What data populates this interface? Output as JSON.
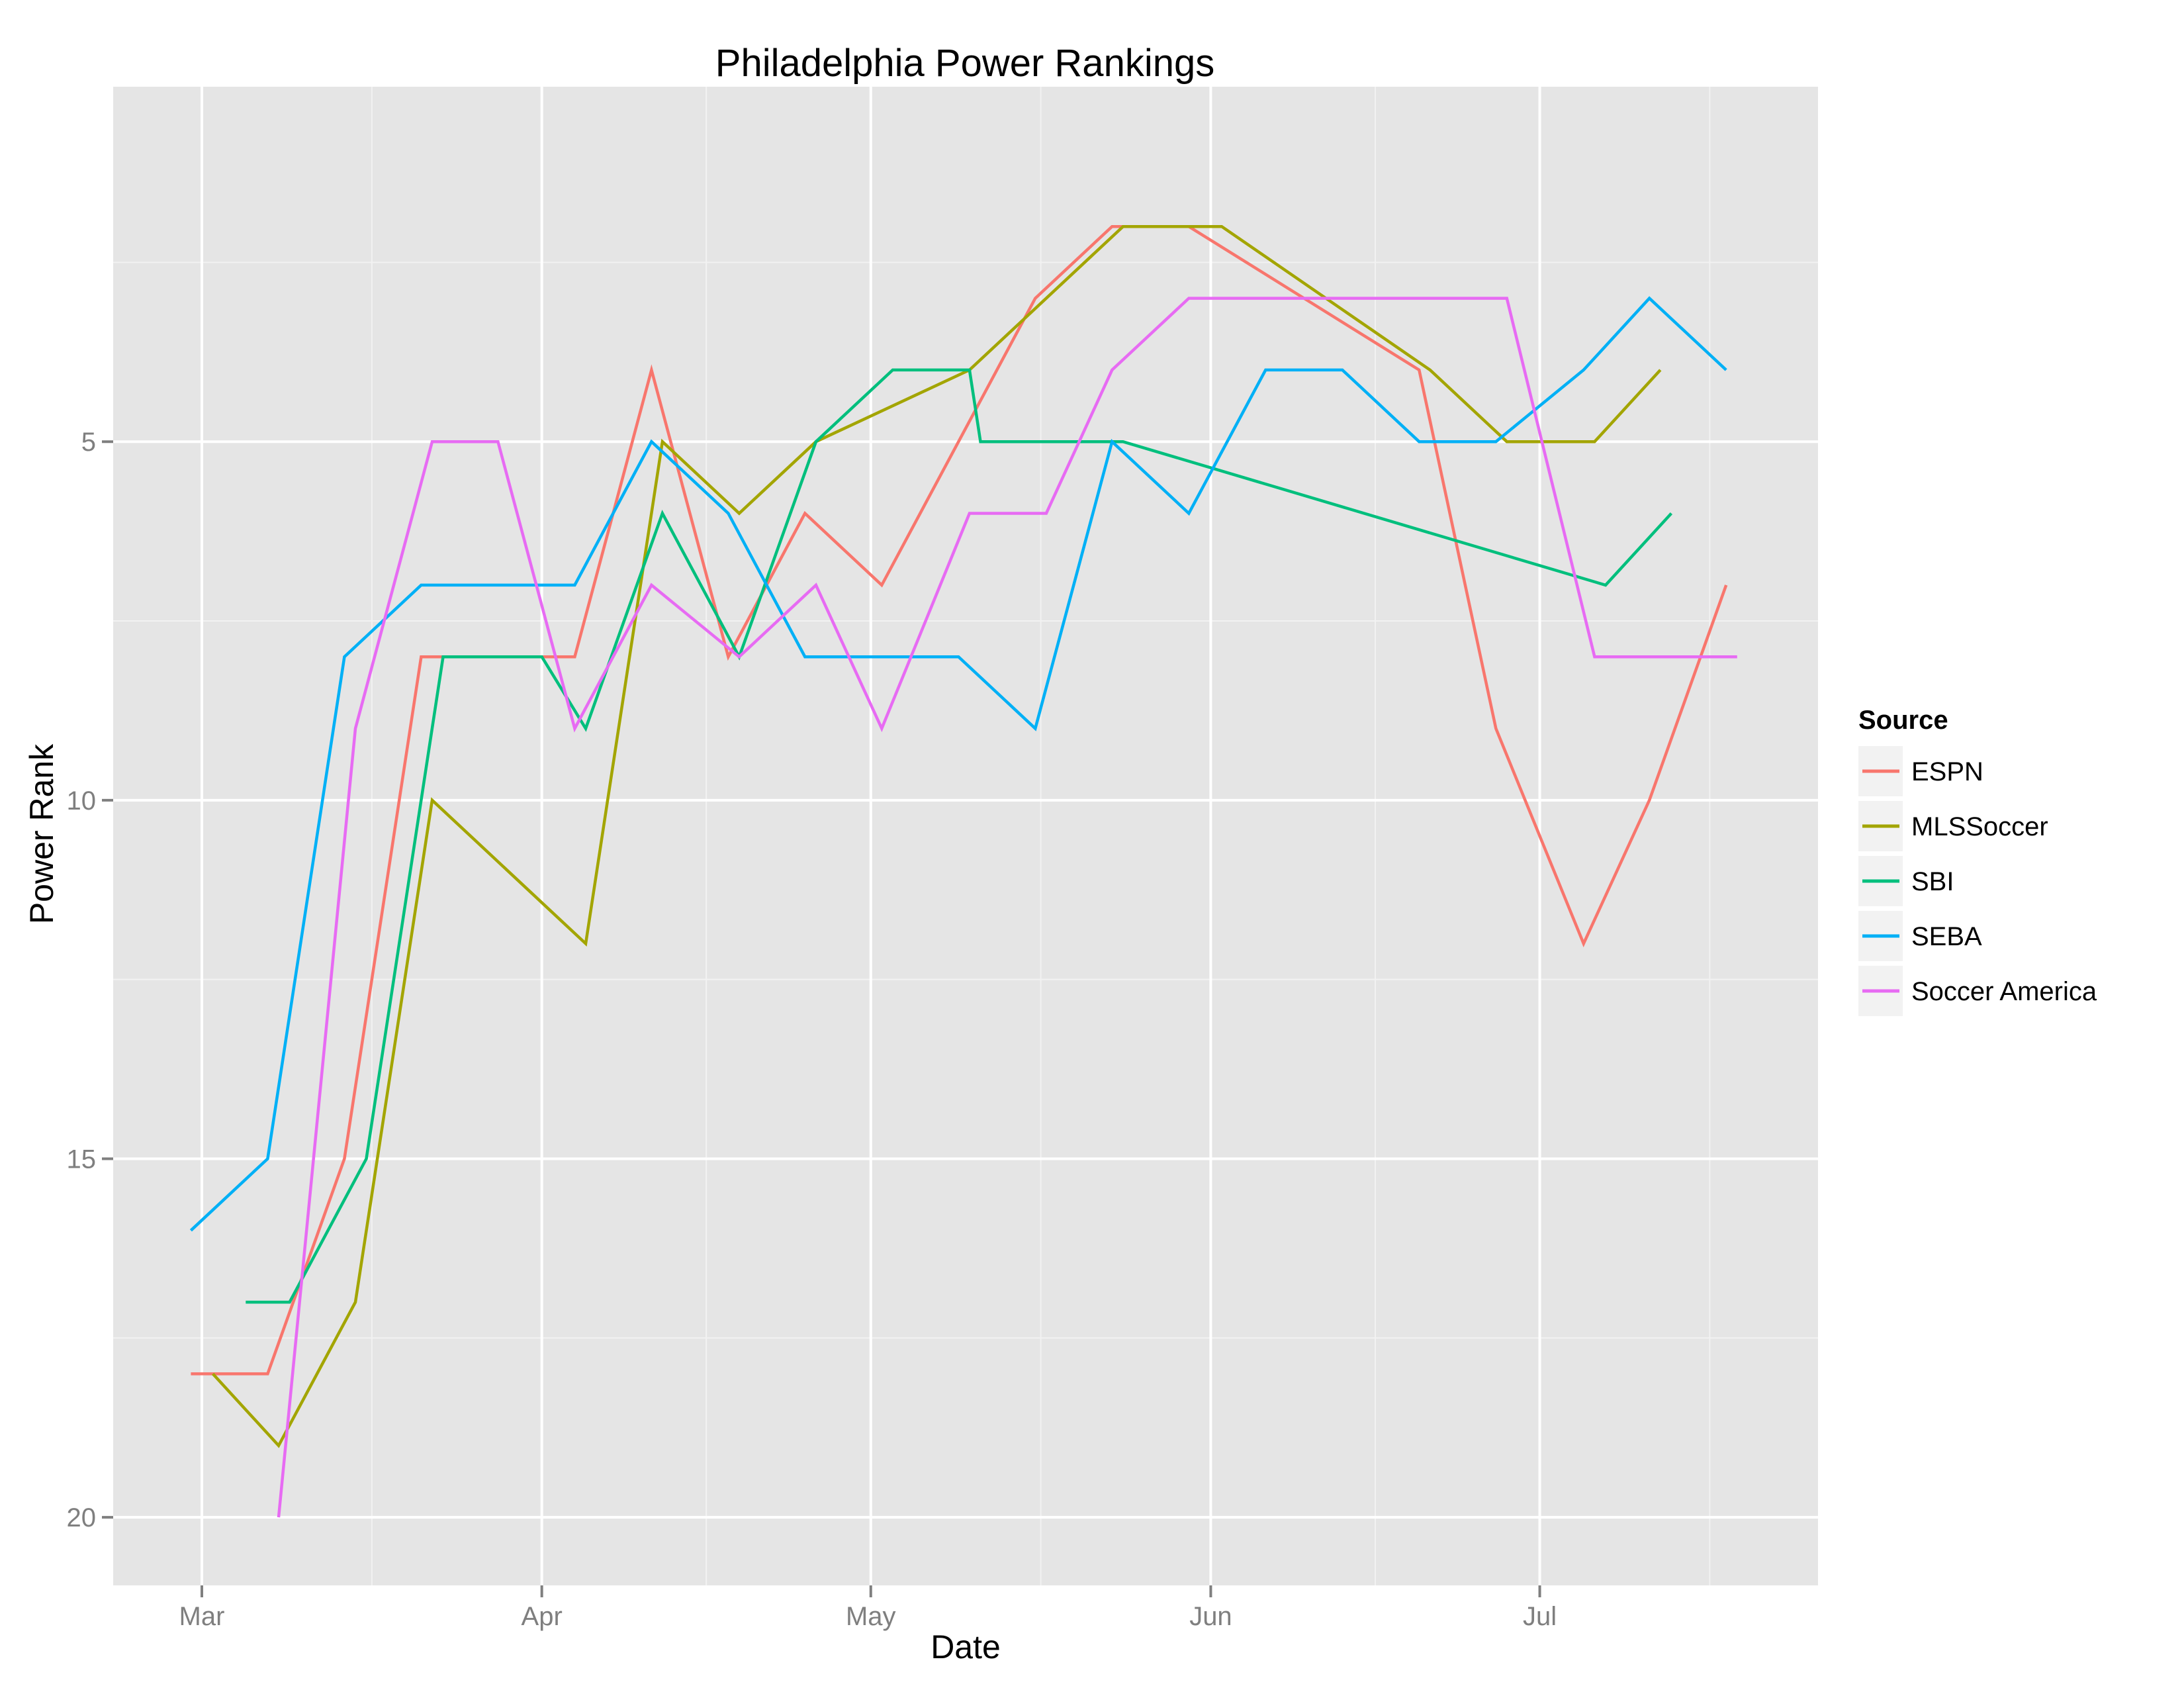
{
  "chart_data": {
    "type": "line",
    "title": "Philadelphia Power Rankings",
    "xlabel": "Date",
    "ylabel": "Power Rank",
    "x_ticks": [
      {
        "label": "Mar",
        "date": "03-01"
      },
      {
        "label": "Apr",
        "date": "04-01"
      },
      {
        "label": "May",
        "date": "05-01"
      },
      {
        "label": "Jun",
        "date": "06-01"
      },
      {
        "label": "Jul",
        "date": "07-01"
      }
    ],
    "y_ticks": [
      5,
      10,
      15,
      20
    ],
    "ylim": [
      20.95,
      0.05
    ],
    "y_reversed": true,
    "grid": true,
    "legend_position": "right",
    "legend_title": "Source",
    "series": [
      {
        "name": "ESPN",
        "color": "#F8766D",
        "points": [
          [
            "02-28",
            18
          ],
          [
            "03-07",
            18
          ],
          [
            "03-14",
            15
          ],
          [
            "03-21",
            8
          ],
          [
            "04-04",
            8
          ],
          [
            "04-11",
            4
          ],
          [
            "04-18",
            8
          ],
          [
            "04-25",
            6
          ],
          [
            "05-02",
            7
          ],
          [
            "05-16",
            3
          ],
          [
            "05-23",
            2
          ],
          [
            "05-30",
            2
          ],
          [
            "06-20",
            4
          ],
          [
            "06-27",
            9
          ],
          [
            "07-05",
            12
          ],
          [
            "07-11",
            10
          ],
          [
            "07-18",
            7
          ]
        ]
      },
      {
        "name": "MLSSoccer",
        "color": "#A3A500",
        "points": [
          [
            "03-02",
            18
          ],
          [
            "03-08",
            19
          ],
          [
            "03-15",
            17
          ],
          [
            "03-22",
            10
          ],
          [
            "04-05",
            12
          ],
          [
            "04-12",
            5
          ],
          [
            "04-19",
            6
          ],
          [
            "04-26",
            5
          ],
          [
            "05-10",
            4
          ],
          [
            "05-24",
            2
          ],
          [
            "06-02",
            2
          ],
          [
            "06-21",
            4
          ],
          [
            "06-28",
            5
          ],
          [
            "07-06",
            5
          ],
          [
            "07-12",
            4
          ]
        ]
      },
      {
        "name": "SBI",
        "color": "#00BF7D",
        "points": [
          [
            "03-05",
            17
          ],
          [
            "03-09",
            17
          ],
          [
            "03-16",
            15
          ],
          [
            "03-23",
            8
          ],
          [
            "04-01",
            8
          ],
          [
            "04-05",
            9
          ],
          [
            "04-12",
            6
          ],
          [
            "04-19",
            8
          ],
          [
            "04-26",
            5
          ],
          [
            "05-03",
            4
          ],
          [
            "05-10",
            4
          ],
          [
            "05-11",
            5
          ],
          [
            "05-24",
            5
          ],
          [
            "07-07",
            7
          ],
          [
            "07-13",
            6
          ]
        ]
      },
      {
        "name": "SEBA",
        "color": "#00B0F6",
        "points": [
          [
            "02-28",
            16
          ],
          [
            "03-07",
            15
          ],
          [
            "03-14",
            8
          ],
          [
            "03-21",
            7
          ],
          [
            "04-04",
            7
          ],
          [
            "04-11",
            5
          ],
          [
            "04-18",
            6
          ],
          [
            "04-25",
            8
          ],
          [
            "05-09",
            8
          ],
          [
            "05-16",
            9
          ],
          [
            "05-23",
            5
          ],
          [
            "05-30",
            6
          ],
          [
            "06-06",
            4
          ],
          [
            "06-13",
            4
          ],
          [
            "06-20",
            5
          ],
          [
            "06-27",
            5
          ],
          [
            "07-05",
            4
          ],
          [
            "07-11",
            3
          ],
          [
            "07-18",
            4
          ]
        ]
      },
      {
        "name": "Soccer America",
        "color": "#E76BF3",
        "points": [
          [
            "03-08",
            20
          ],
          [
            "03-15",
            9
          ],
          [
            "03-22",
            5
          ],
          [
            "03-28",
            5
          ],
          [
            "04-04",
            9
          ],
          [
            "04-11",
            7
          ],
          [
            "04-19",
            8
          ],
          [
            "04-26",
            7
          ],
          [
            "05-02",
            9
          ],
          [
            "05-10",
            6
          ],
          [
            "05-17",
            6
          ],
          [
            "05-23",
            4
          ],
          [
            "05-30",
            3
          ],
          [
            "06-28",
            3
          ],
          [
            "07-06",
            8
          ],
          [
            "07-19",
            8
          ]
        ]
      }
    ]
  },
  "ui": {
    "title": "Philadelphia Power Rankings",
    "xlabel": "Date",
    "ylabel": "Power Rank",
    "legend_title": "Source",
    "colors": {
      "panel_bg": "#E5E5E5",
      "grid_major": "#FFFFFF",
      "grid_minor": "#F2F2F2",
      "tick": "#7F7F7F",
      "legend_key_bg": "#F2F2F2"
    }
  }
}
